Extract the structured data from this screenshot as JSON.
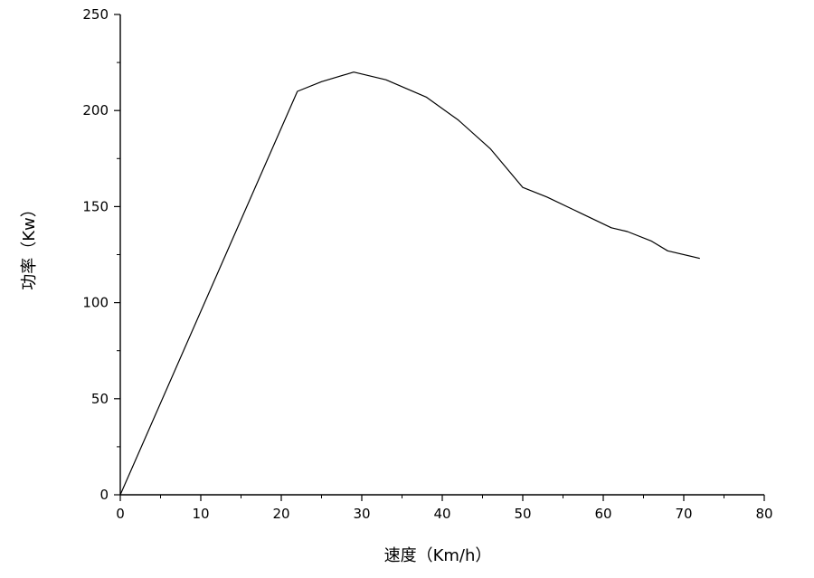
{
  "chart_data": {
    "type": "line",
    "title": "",
    "xlabel": "速度（Km/h）",
    "ylabel": "功率（Kw）",
    "xlim": [
      0,
      80
    ],
    "ylim": [
      0,
      250
    ],
    "x_ticks": [
      0,
      10,
      20,
      30,
      40,
      50,
      60,
      70,
      80
    ],
    "y_ticks": [
      0,
      50,
      100,
      150,
      200,
      250
    ],
    "x_tick_labels": [
      "0",
      "10",
      "20",
      "30",
      "40",
      "50",
      "60",
      "70",
      "80"
    ],
    "y_tick_labels": [
      "0",
      "50",
      "100",
      "150",
      "200",
      "250"
    ],
    "grid": false,
    "legend": "none",
    "series": [
      {
        "color": "#000000",
        "x": [
          0,
          22,
          25,
          29,
          33,
          38,
          42,
          46,
          50,
          53,
          57,
          61,
          63,
          66,
          68,
          72
        ],
        "y": [
          0,
          210,
          215,
          220,
          216,
          207,
          195,
          180,
          160,
          155,
          147,
          139,
          137,
          132,
          127,
          123
        ]
      }
    ]
  }
}
